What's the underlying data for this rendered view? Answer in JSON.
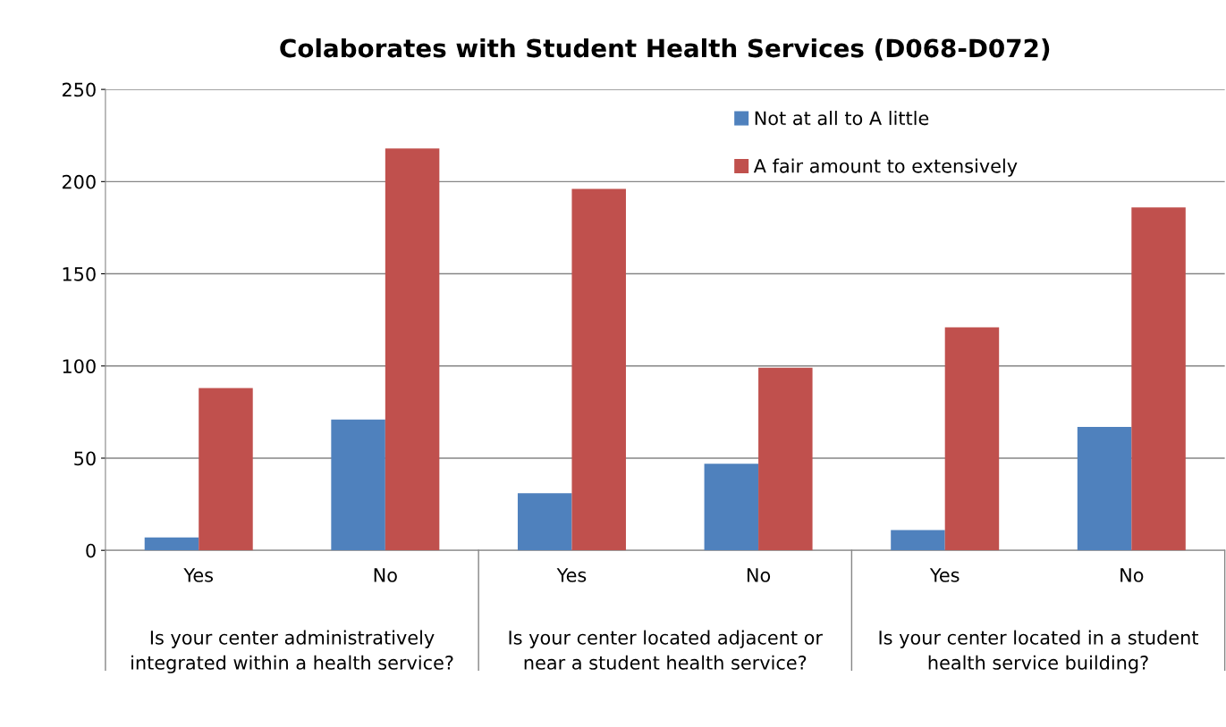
{
  "chart_data": {
    "type": "bar",
    "title": "Colaborates with Student Health Services (D068-D072)",
    "categories": [
      "Yes",
      "No",
      "Yes",
      "No",
      "Yes",
      "No"
    ],
    "series": [
      {
        "name": "Not at all to A little",
        "color": "#4f81bd",
        "values": [
          7,
          71,
          31,
          47,
          11,
          67
        ]
      },
      {
        "name": "A fair amount to extensively",
        "color": "#c0504d",
        "values": [
          88,
          218,
          196,
          99,
          121,
          186
        ]
      }
    ],
    "annotations": [
      "Is your center administratively\nintegrated within a health service?",
      "Is your center located adjacent or\nnear a student health service?",
      "Is your center located in a student\nhealth service building?"
    ],
    "ylim": [
      0,
      250
    ],
    "yticks": [
      0,
      50,
      100,
      150,
      200,
      250
    ],
    "grid": "y",
    "legend": "top right"
  }
}
